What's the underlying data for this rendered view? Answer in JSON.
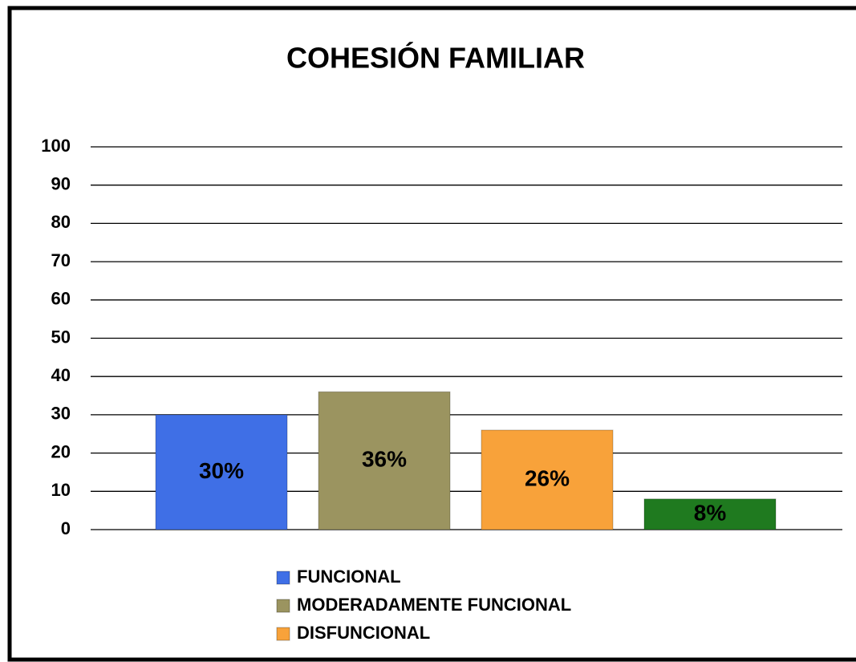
{
  "chart_data": {
    "type": "bar",
    "title": "COHESIÓN FAMILIAR",
    "series": [
      {
        "name": "FUNCIONAL",
        "color": "#3f6fe6",
        "values": [
          30
        ],
        "value_labels": [
          "30%"
        ]
      },
      {
        "name": "MODERADAMENTE FUNCIONAL",
        "color": "#9b9460",
        "values": [
          36
        ],
        "value_labels": [
          "36%"
        ]
      },
      {
        "name": "DISFUNCIONAL",
        "color": "#f8a23a",
        "values": [
          26
        ],
        "value_labels": [
          "26%"
        ]
      },
      {
        "color": "#1f7a1f",
        "values": [
          8
        ],
        "value_labels": [
          "8%"
        ]
      }
    ],
    "ylim": [
      0,
      100
    ],
    "yticks": [
      0,
      10,
      20,
      30,
      40,
      50,
      60,
      70,
      80,
      90,
      100
    ],
    "grid": true,
    "legend": "bottom"
  }
}
